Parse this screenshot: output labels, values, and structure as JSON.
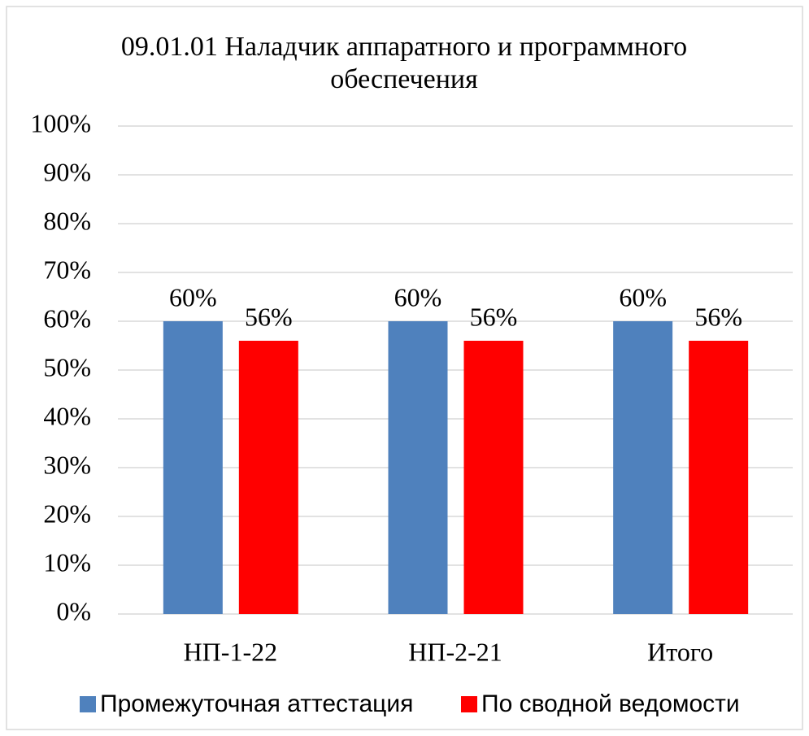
{
  "chart_data": {
    "type": "bar",
    "title": "09.01.01 Наладчик аппаратного и программного обеспечения",
    "categories": [
      "НП-1-22",
      "НП-2-21",
      "Итого"
    ],
    "series": [
      {
        "name": "Промежуточная аттестация",
        "color": "#4f81bd",
        "values": [
          60,
          60,
          60
        ],
        "value_labels": [
          "60%",
          "60%",
          "60%"
        ]
      },
      {
        "name": "По сводной ведомости",
        "color": "#ff0000",
        "values": [
          56,
          56,
          56
        ],
        "value_labels": [
          "56%",
          "56%",
          "56%"
        ]
      }
    ],
    "ylim": [
      0,
      100
    ],
    "yticks": [
      {
        "value": 0,
        "label": "0%"
      },
      {
        "value": 10,
        "label": "10%"
      },
      {
        "value": 20,
        "label": "20%"
      },
      {
        "value": 30,
        "label": "30%"
      },
      {
        "value": 40,
        "label": "40%"
      },
      {
        "value": 50,
        "label": "50%"
      },
      {
        "value": 60,
        "label": "60%"
      },
      {
        "value": 70,
        "label": "70%"
      },
      {
        "value": 80,
        "label": "80%"
      },
      {
        "value": 90,
        "label": "90%"
      },
      {
        "value": 100,
        "label": "100%"
      }
    ],
    "grid": true,
    "legend": "bottom"
  }
}
